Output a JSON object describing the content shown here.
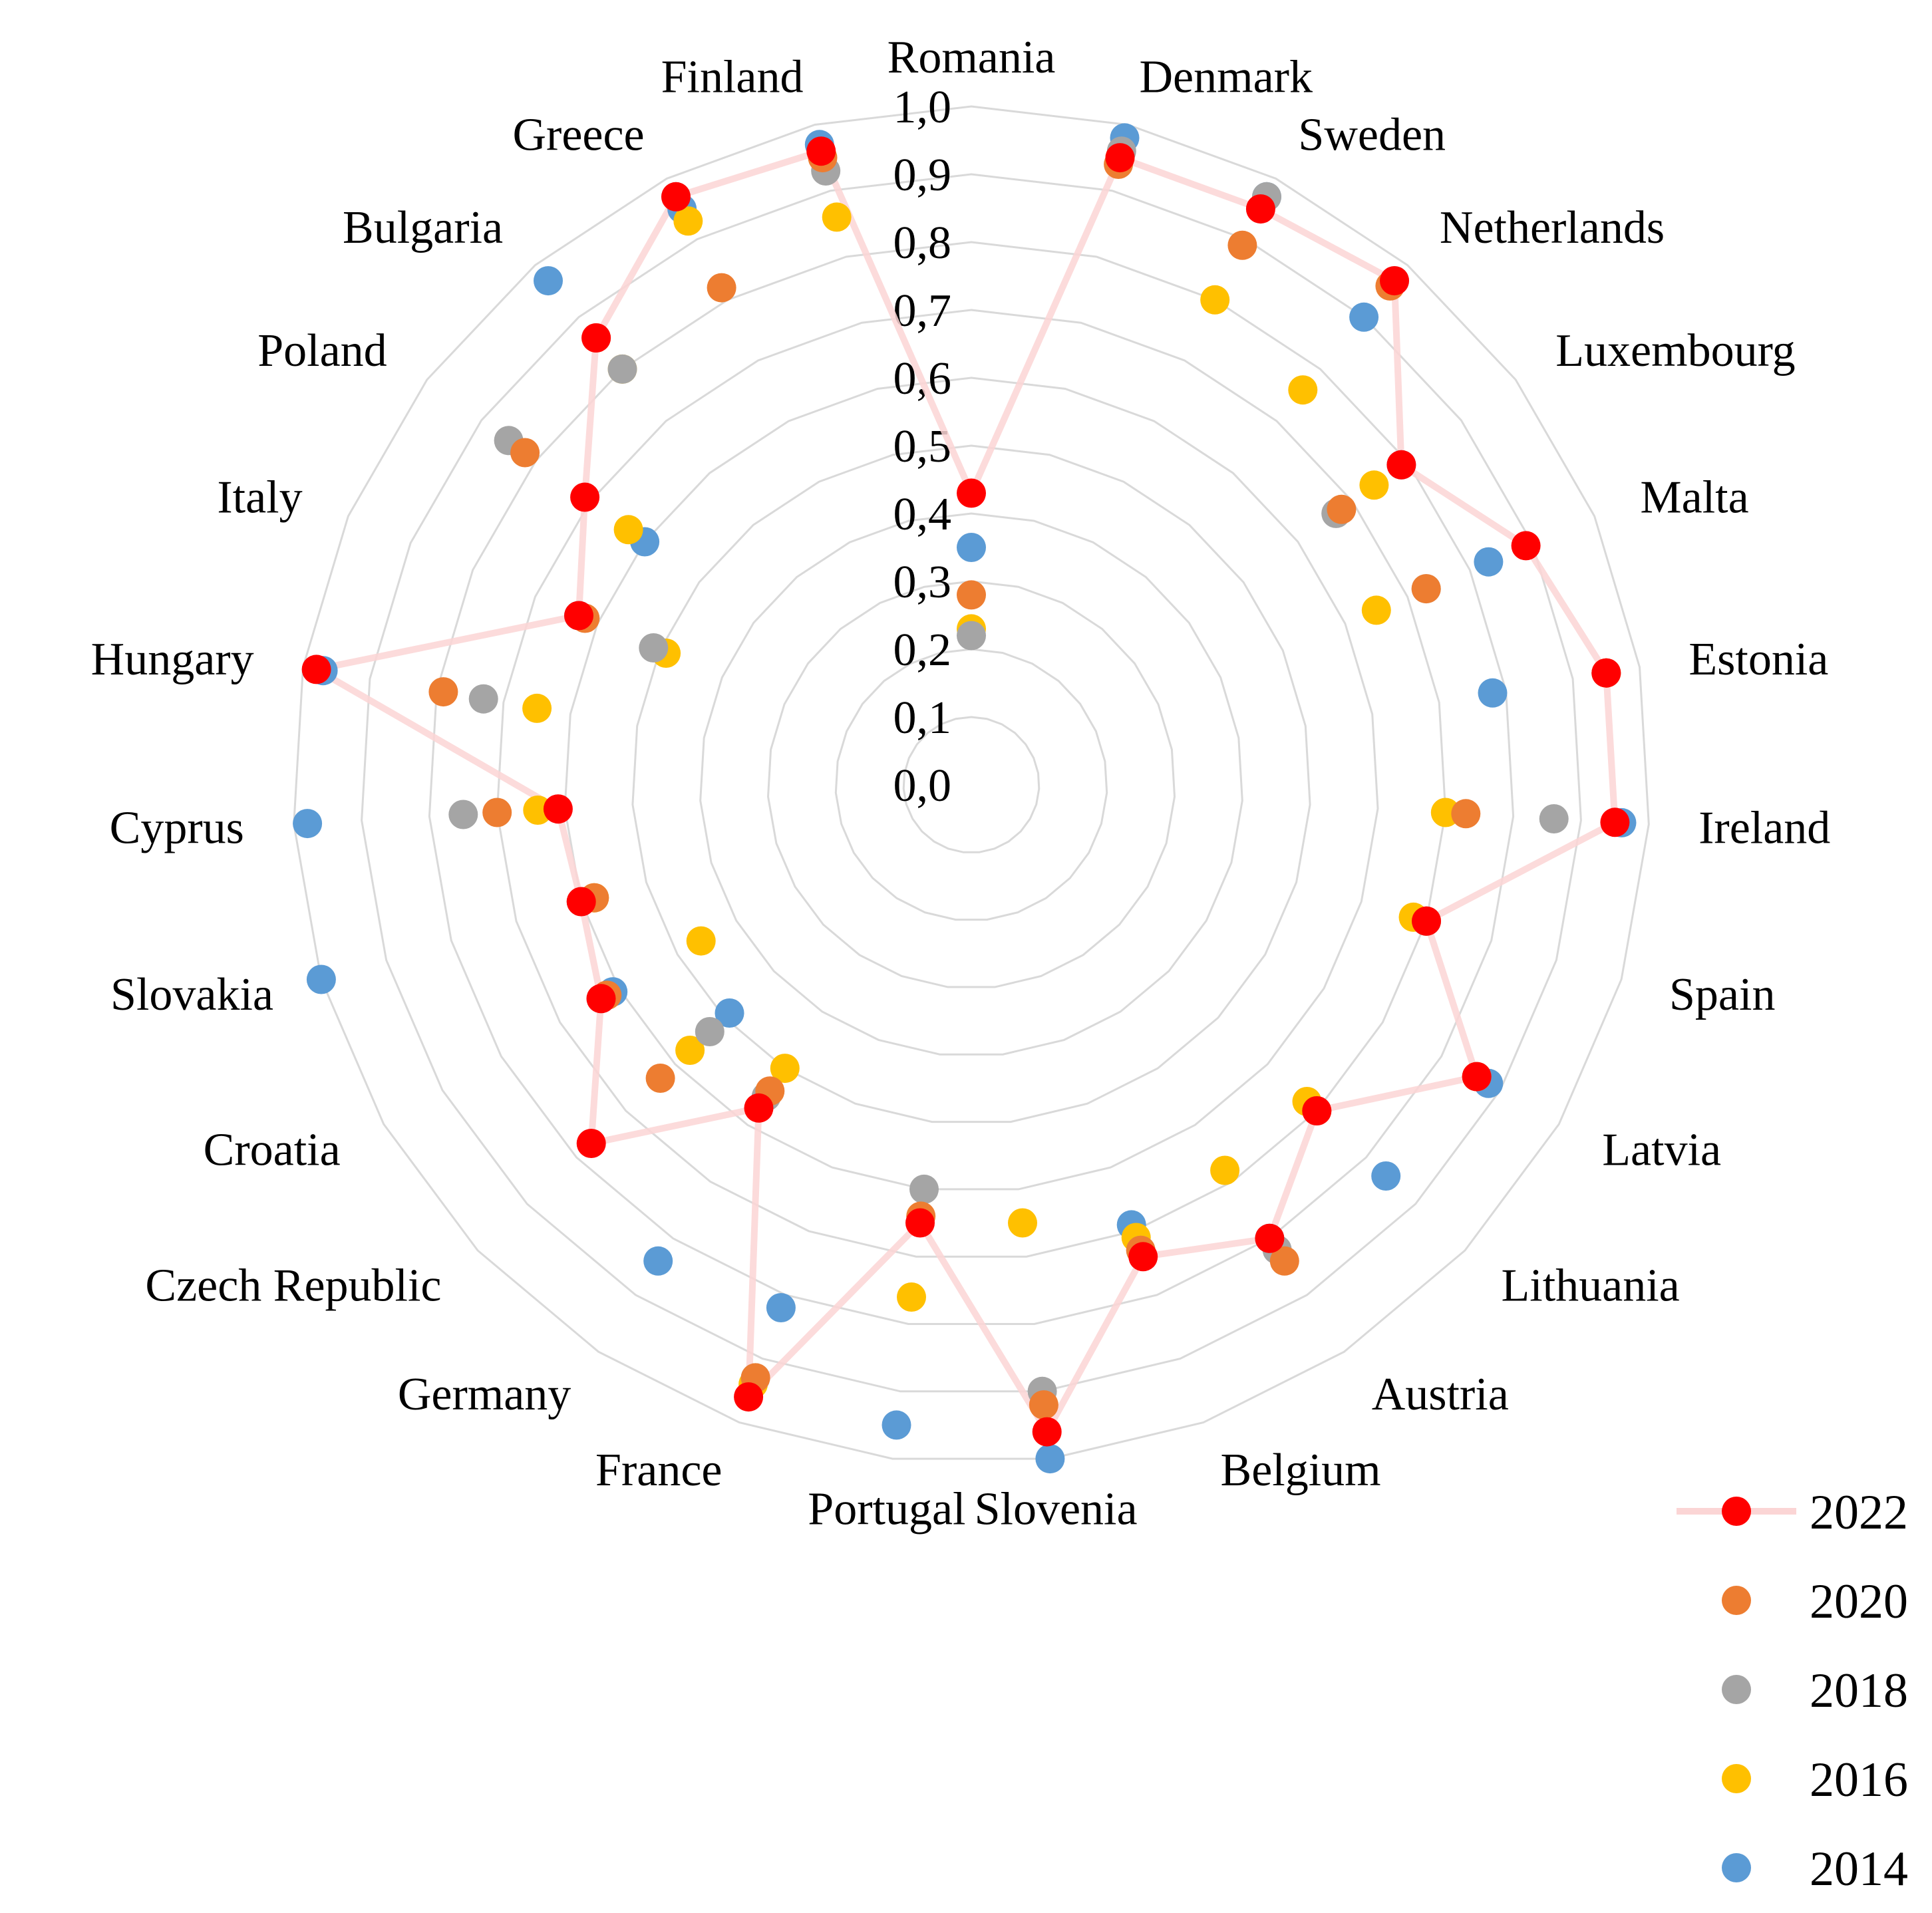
{
  "chart_data": {
    "type": "radar",
    "categories": [
      "Romania",
      "Denmark",
      "Sweden",
      "Netherlands",
      "Luxembourg",
      "Malta",
      "Estonia",
      "Ireland",
      "Spain",
      "Latvia",
      "Lithuania",
      "Austria",
      "Belgium",
      "Slovenia",
      "Portugal",
      "France",
      "Germany",
      "Czech Republic",
      "Croatia",
      "Slovakia",
      "Cyprus",
      "Hungary",
      "Italy",
      "Poland",
      "Bulgaria",
      "Greece",
      "Finland"
    ],
    "ticks": [
      "0,0",
      "0,1",
      "0,2",
      "0,3",
      "0,4",
      "0,5",
      "0,6",
      "0,7",
      "0,8",
      "0,9",
      "1,0"
    ],
    "rlim": [
      0,
      1
    ],
    "legend": "bottom-right",
    "grid": true,
    "series": [
      {
        "name": "2022",
        "color": "#ff0000",
        "line": true,
        "values": [
          0.43,
          0.95,
          0.95,
          0.97,
          0.79,
          0.89,
          0.95,
          0.95,
          0.7,
          0.86,
          0.7,
          0.8,
          0.74,
          0.96,
          0.65,
          0.96,
          0.57,
          0.77,
          0.63,
          0.6,
          0.61,
          0.98,
          0.63,
          0.71,
          0.86,
          0.97,
          0.96
        ]
      },
      {
        "name": "2020",
        "color": "#ed7d31",
        "line": false,
        "values": [
          0.28,
          0.94,
          0.89,
          0.96,
          0.68,
          0.73,
          0.95,
          0.73,
          0.7,
          0.86,
          0.7,
          0.84,
          0.73,
          0.92,
          0.64,
          0.93,
          0.54,
          0.63,
          0.62,
          0.58,
          0.7,
          0.79,
          0.62,
          0.82,
          0.86,
          0.82,
          0.95
        ]
      },
      {
        "name": "2018",
        "color": "#a5a5a5",
        "line": false,
        "values": [
          0.22,
          0.96,
          0.97,
          0.97,
          0.67,
          0.73,
          0.95,
          0.86,
          0.7,
          0.86,
          0.7,
          0.82,
          0.73,
          0.9,
          0.6,
          0.93,
          0.55,
          0.53,
          0.63,
          0.6,
          0.75,
          0.73,
          0.51,
          0.85,
          0.8,
          0.97,
          0.93
        ]
      },
      {
        "name": "2016",
        "color": "#ffc000",
        "line": false,
        "values": [
          0.23,
          0.95,
          0.8,
          0.76,
          0.74,
          0.65,
          0.95,
          0.7,
          0.68,
          0.86,
          0.68,
          0.68,
          0.71,
          0.65,
          0.76,
          0.94,
          0.5,
          0.57,
          0.46,
          0.58,
          0.64,
          0.65,
          0.49,
          0.63,
          0.8,
          0.93,
          0.86
        ]
      },
      {
        "name": "2014",
        "color": "#5b9bd5",
        "line": false,
        "values": [
          0.35,
          0.98,
          0.97,
          0.9,
          0.79,
          0.83,
          0.78,
          0.96,
          0.7,
          0.88,
          0.84,
          0.8,
          0.69,
          1.0,
          0.95,
          0.82,
          0.84,
          0.49,
          0.61,
          1.0,
          0.98,
          0.97,
          0.63,
          0.6,
          0.97,
          0.95,
          0.97
        ]
      }
    ]
  }
}
